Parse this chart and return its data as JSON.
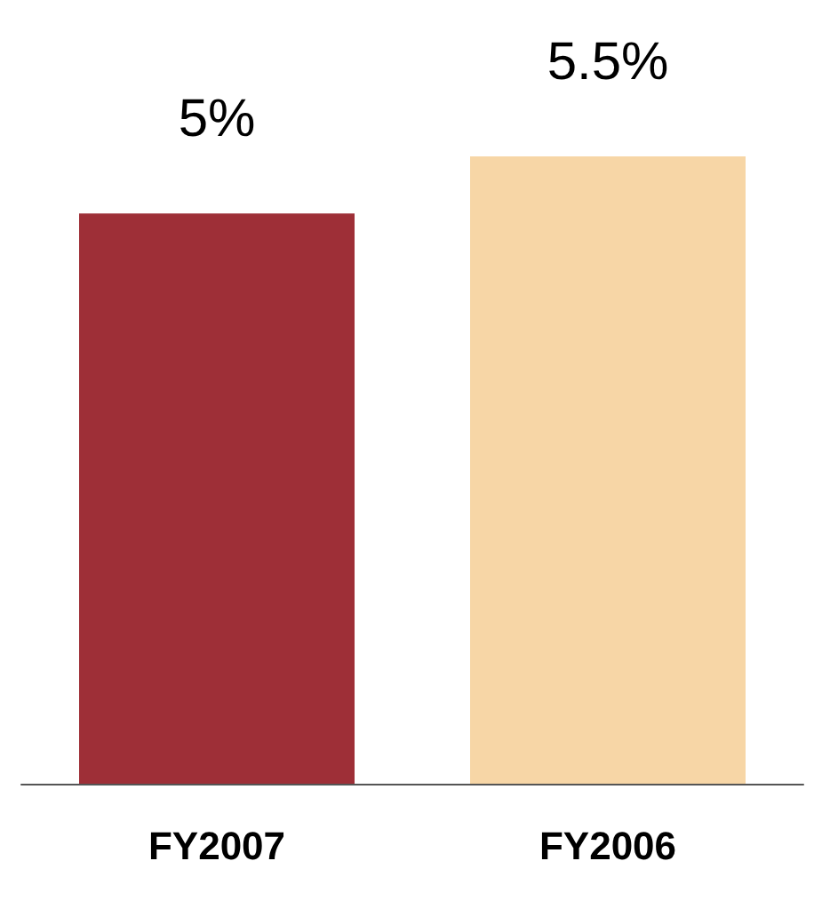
{
  "chart_data": {
    "type": "bar",
    "categories": [
      "FY2007",
      "FY2006"
    ],
    "values": [
      5,
      5.5
    ],
    "colors": [
      "#9e2f37",
      "#f7d6a6"
    ],
    "value_labels": [
      "5%",
      "5.5%"
    ]
  }
}
